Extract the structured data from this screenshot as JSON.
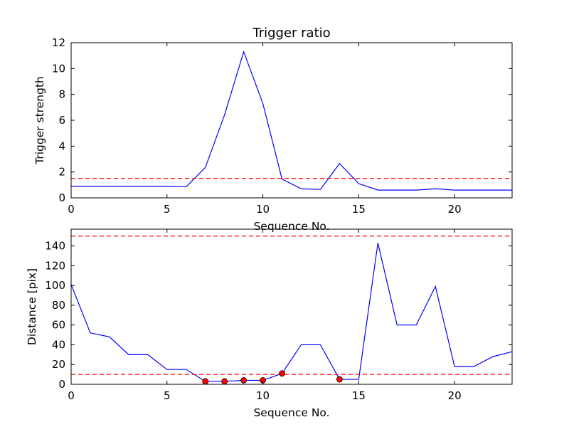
{
  "colors": {
    "line": "#0000ff",
    "threshold": "#ff0000",
    "marker_fill": "#ff0000",
    "marker_edge": "#000000",
    "axes": "#000000",
    "background": "#ffffff"
  },
  "chart_data": [
    {
      "type": "line",
      "title": "Trigger ratio",
      "xlabel": "Sequence No.",
      "ylabel": "Trigger strength",
      "xlim": [
        0,
        23
      ],
      "ylim": [
        0,
        12
      ],
      "xticks": [
        "0",
        "5",
        "10",
        "15",
        "20"
      ],
      "xtick_values": [
        0,
        5,
        10,
        15,
        20
      ],
      "yticks": [
        "0",
        "2",
        "4",
        "6",
        "8",
        "10",
        "12"
      ],
      "ytick_values": [
        0,
        2,
        4,
        6,
        8,
        10,
        12
      ],
      "grid": false,
      "series": [
        {
          "x": [
            0,
            1,
            2,
            3,
            4,
            5,
            6,
            7,
            8,
            9,
            10,
            11,
            12,
            13,
            14,
            15,
            16,
            17,
            18,
            19,
            20,
            21,
            22,
            23
          ],
          "y": [
            0.9,
            0.9,
            0.9,
            0.9,
            0.9,
            0.9,
            0.85,
            2.35,
            6.4,
            11.3,
            7.3,
            1.45,
            0.7,
            0.65,
            2.65,
            1.1,
            0.6,
            0.6,
            0.6,
            0.7,
            0.6,
            0.6,
            0.6,
            0.6
          ]
        }
      ],
      "hlines": [
        1.5
      ]
    },
    {
      "type": "line",
      "title": "",
      "xlabel": "Sequence No.",
      "ylabel": "Distance [pix]",
      "xlim": [
        0,
        23
      ],
      "ylim": [
        0,
        157
      ],
      "xticks": [
        "0",
        "5",
        "10",
        "15",
        "20"
      ],
      "xtick_values": [
        0,
        5,
        10,
        15,
        20
      ],
      "yticks": [
        "0",
        "20",
        "40",
        "60",
        "80",
        "100",
        "120",
        "140"
      ],
      "ytick_values": [
        0,
        20,
        40,
        60,
        80,
        100,
        120,
        140
      ],
      "grid": false,
      "series": [
        {
          "x": [
            0,
            1,
            2,
            3,
            4,
            5,
            6,
            7,
            8,
            9,
            10,
            11,
            12,
            13,
            14,
            15,
            16,
            17,
            18,
            19,
            20,
            21,
            22,
            23
          ],
          "y": [
            101,
            52,
            48,
            30,
            30,
            15,
            15,
            3,
            3,
            4,
            4,
            11,
            40,
            40,
            5,
            5,
            143,
            60,
            60,
            99,
            18,
            18,
            28,
            33
          ]
        }
      ],
      "markers": {
        "x": [
          7,
          8,
          9,
          10,
          11,
          14
        ],
        "y": [
          3,
          3,
          4,
          4,
          11,
          5
        ]
      },
      "hlines": [
        10,
        150
      ]
    }
  ]
}
